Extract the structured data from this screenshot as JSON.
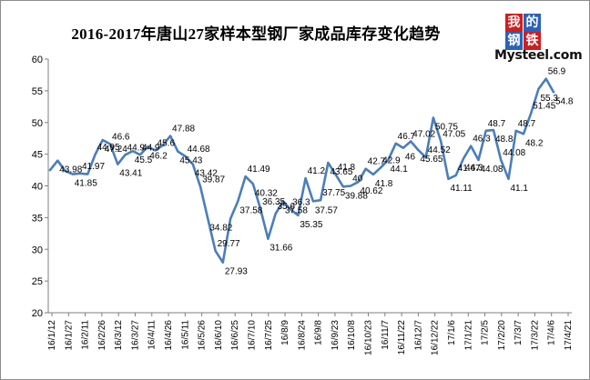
{
  "chart_data": {
    "type": "line",
    "title": "2016-2017年唐山27家样本型钢厂家成品库存变化趋势",
    "xlabel": "",
    "ylabel": "",
    "ylim": [
      20,
      60
    ],
    "yticks": [
      20,
      25,
      30,
      35,
      40,
      45,
      50,
      55,
      60
    ],
    "grid": false,
    "legend": "none",
    "line_color": "#4a7ebb",
    "x_tick_labels": [
      "16/1/12",
      "16/1/27",
      "16/2/11",
      "16/2/26",
      "16/3/12",
      "16/3/27",
      "16/4/11",
      "16/4/26",
      "16/5/11",
      "16/5/26",
      "16/6/10",
      "16/6/25",
      "16/7/10",
      "16/7/25",
      "16/8/9",
      "16/8/24",
      "16/9/8",
      "16/9/23",
      "16/10/8",
      "16/10/23",
      "16/11/7",
      "16/11/22",
      "16/12/7",
      "16/12/22",
      "17/1/6",
      "17/1/21",
      "17/2/5",
      "17/2/20",
      "17/3/7",
      "17/3/22",
      "17/4/6",
      "17/4/21"
    ],
    "series": [
      {
        "values": [
          42.5,
          43.98,
          42.36,
          41.85,
          41.97,
          41.85,
          44.95,
          47.24,
          46.6,
          43.41,
          44.9,
          45.5,
          44.9,
          46.2,
          45.6,
          46.4,
          47.88,
          45.43,
          44.68,
          43.42,
          39.87,
          34.82,
          29.77,
          27.93,
          34.82,
          37.58,
          41.49,
          40.32,
          36.35,
          31.66,
          35.6,
          37.58,
          36.3,
          35.35,
          41.2,
          37.57,
          37.75,
          43.65,
          41.8,
          39.88,
          40.0,
          40.62,
          42.7,
          41.8,
          42.9,
          44.1,
          46.7,
          46.0,
          47.02,
          45.65,
          44.52,
          50.75,
          47.05,
          41.11,
          41.67,
          44.3,
          46.3,
          44.08,
          48.7,
          48.8,
          44.08,
          41.1,
          48.7,
          48.2,
          51.45,
          55.3,
          56.9,
          54.8
        ],
        "labels": [
          "",
          "43.98",
          "",
          "41.85",
          "41.97",
          "",
          "44.95",
          "47.24",
          "46.6",
          "43.41",
          "44.9",
          "45.5",
          "44.9",
          "46.2",
          "45.6",
          "",
          "47.88",
          "45.43",
          "44.68",
          "43.42",
          "39.87",
          "34.82",
          "29.77",
          "27.93",
          "",
          "37.58",
          "41.49",
          "40.32",
          "36.35",
          "31.66",
          "35.6",
          "37.58",
          "36.3",
          "35.35",
          "41.2",
          "37.57",
          "37.75",
          "43.65",
          "41.8",
          "39.88",
          "40",
          "40.62",
          "42.7",
          "41.8",
          "42.9",
          "44.1",
          "46.7",
          "46",
          "47.02",
          "45.65",
          "44.52",
          "50.75",
          "47.05",
          "41.11",
          "41.67",
          "44.3",
          "46.3",
          "44.08",
          "48.7",
          "48.8",
          "44.08",
          "41.1",
          "48.7",
          "48.2",
          "51.45",
          "55.3",
          "56.9",
          "54.8"
        ]
      }
    ]
  },
  "logo": {
    "char1": "我",
    "char2": "的",
    "char3": "钢",
    "char4": "铁",
    "text": "Mysteel.com"
  }
}
